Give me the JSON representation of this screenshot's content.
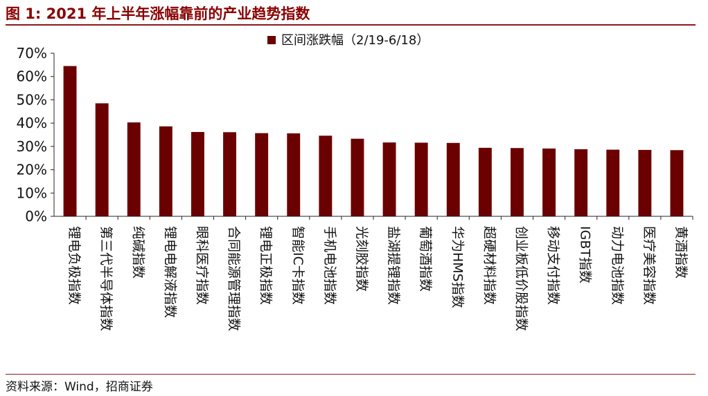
{
  "figure": {
    "title": "图 1:  2021 年上半年涨幅靠前的产业趋势指数",
    "source": "资料来源：Wind，招商证券"
  },
  "chart_data": {
    "type": "bar",
    "series": [
      {
        "name": "区间涨跌幅（2/19-6/18）",
        "color": "#6B0000",
        "values": [
          64.5,
          48.5,
          40.3,
          38.6,
          36.2,
          36.1,
          35.7,
          35.6,
          34.6,
          33.3,
          31.7,
          31.6,
          31.5,
          29.4,
          29.3,
          29.1,
          28.8,
          28.6,
          28.5,
          28.4
        ]
      }
    ],
    "categories": [
      "锂电负极指数",
      "第三代半导体指数",
      "纯碱指数",
      "锂电电解液指数",
      "眼科医疗指数",
      "合同能源管理指数",
      "锂电正极指数",
      "智能IC卡指数",
      "手机电池指数",
      "光刻胶指数",
      "盐湖提锂指数",
      "葡萄酒指数",
      "华为HMS指数",
      "超硬材料指数",
      "创业板低价股指数",
      "移动支付指数",
      "IGBT指数",
      "动力电池指数",
      "医疗美容指数",
      "黄酒指数"
    ],
    "y_ticks": [
      "0%",
      "10%",
      "20%",
      "30%",
      "40%",
      "50%",
      "60%",
      "70%"
    ],
    "ylim": [
      0,
      70
    ],
    "unit": "%",
    "legend_position": "top-center",
    "grid": false
  }
}
